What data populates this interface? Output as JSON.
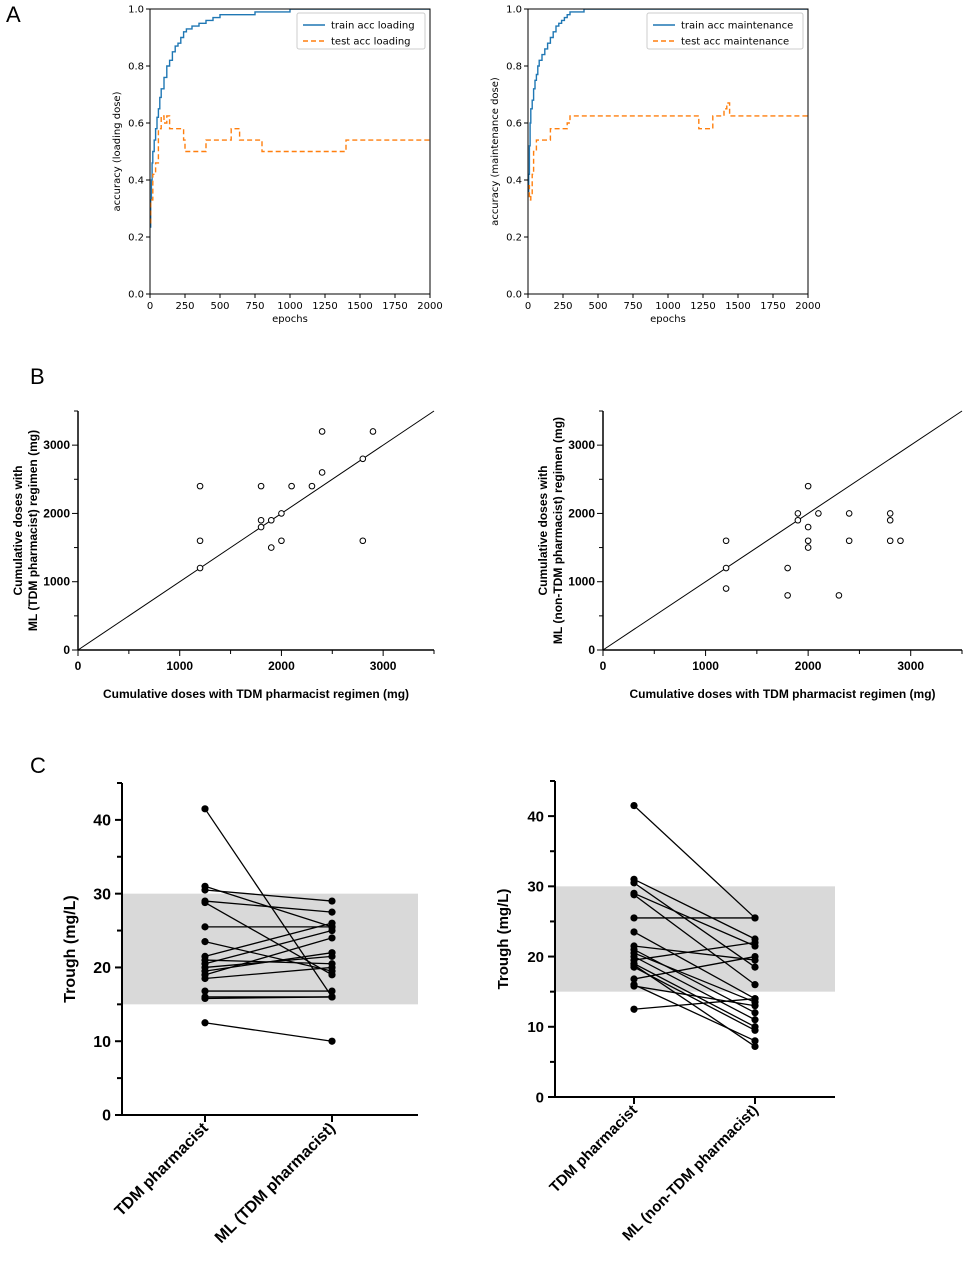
{
  "panel_labels": {
    "a": "A",
    "b": "B",
    "c": "C"
  },
  "chart_data": [
    {
      "id": "a1",
      "type": "line",
      "xlabel": "epochs",
      "ylabel": "accuracy (loading dose)",
      "xlim": [
        0,
        2000
      ],
      "ylim": [
        0,
        1.0
      ],
      "xticks": [
        0,
        250,
        500,
        750,
        1000,
        1250,
        1500,
        1750,
        2000
      ],
      "yticks": [
        0.0,
        0.2,
        0.4,
        0.6,
        0.8,
        1.0
      ],
      "legend": "top-right",
      "series": [
        {
          "name": "train acc loading",
          "color": "#1f77b4",
          "style": "solid",
          "x": [
            0,
            5,
            10,
            15,
            20,
            30,
            40,
            50,
            60,
            70,
            80,
            100,
            120,
            140,
            160,
            180,
            200,
            220,
            240,
            260,
            300,
            350,
            400,
            450,
            500,
            600,
            700,
            750,
            800,
            1000
          ],
          "y": [
            0.235,
            0.33,
            0.4,
            0.46,
            0.5,
            0.54,
            0.58,
            0.62,
            0.65,
            0.69,
            0.72,
            0.76,
            0.8,
            0.82,
            0.85,
            0.87,
            0.88,
            0.9,
            0.92,
            0.93,
            0.94,
            0.95,
            0.96,
            0.97,
            0.98,
            0.98,
            0.98,
            0.99,
            0.99,
            1.0
          ]
        },
        {
          "name": "test acc loading",
          "color": "#ff7f0e",
          "style": "dashed",
          "x": [
            0,
            5,
            20,
            40,
            60,
            80,
            100,
            120,
            140,
            200,
            240,
            250,
            380,
            400,
            560,
            580,
            620,
            640,
            780,
            800,
            1380,
            1400,
            2000
          ],
          "y": [
            0.25,
            0.33,
            0.42,
            0.46,
            0.58,
            0.625,
            0.6,
            0.625,
            0.58,
            0.58,
            0.54,
            0.5,
            0.5,
            0.54,
            0.54,
            0.58,
            0.58,
            0.54,
            0.54,
            0.5,
            0.5,
            0.54,
            0.54
          ]
        }
      ]
    },
    {
      "id": "a2",
      "type": "line",
      "xlabel": "epochs",
      "ylabel": "accuracy (maintenance dose)",
      "xlim": [
        0,
        2000
      ],
      "ylim": [
        0,
        1.0
      ],
      "xticks": [
        0,
        250,
        500,
        750,
        1000,
        1250,
        1500,
        1750,
        2000
      ],
      "yticks": [
        0.0,
        0.2,
        0.4,
        0.6,
        0.8,
        1.0
      ],
      "legend": "top-right",
      "series": [
        {
          "name": "train acc maintenance",
          "color": "#1f77b4",
          "style": "solid",
          "x": [
            0,
            5,
            10,
            15,
            20,
            30,
            40,
            50,
            60,
            70,
            80,
            100,
            120,
            140,
            160,
            180,
            200,
            220,
            240,
            260,
            280,
            300,
            350,
            400
          ],
          "y": [
            0.36,
            0.42,
            0.52,
            0.6,
            0.65,
            0.68,
            0.72,
            0.75,
            0.77,
            0.8,
            0.82,
            0.84,
            0.86,
            0.88,
            0.9,
            0.92,
            0.94,
            0.95,
            0.96,
            0.97,
            0.98,
            0.99,
            0.99,
            1.0
          ]
        },
        {
          "name": "test acc maintenance",
          "color": "#ff7f0e",
          "style": "dashed",
          "x": [
            0,
            10,
            20,
            30,
            40,
            60,
            100,
            120,
            160,
            180,
            280,
            300,
            600,
            1200,
            1220,
            1300,
            1320,
            1380,
            1400,
            1420,
            1440,
            2000
          ],
          "y": [
            0.38,
            0.33,
            0.35,
            0.42,
            0.5,
            0.54,
            0.54,
            0.54,
            0.58,
            0.58,
            0.6,
            0.625,
            0.625,
            0.625,
            0.58,
            0.58,
            0.625,
            0.625,
            0.65,
            0.67,
            0.625,
            0.625
          ]
        }
      ]
    },
    {
      "id": "b1",
      "type": "scatter",
      "xlabel": "Cumulative doses  with TDM pharmacist regimen (mg)",
      "ylabel_lines": [
        "Cumulative doses  with",
        "ML (TDM pharmacist) regimen (mg)"
      ],
      "xlim": [
        0,
        3500
      ],
      "ylim": [
        0,
        3500
      ],
      "xticks": [
        0,
        1000,
        2000,
        3000
      ],
      "yticks": [
        0,
        1000,
        2000,
        3000
      ],
      "identity_line": true,
      "points": [
        [
          1200,
          2400
        ],
        [
          1200,
          1600
        ],
        [
          1200,
          1200
        ],
        [
          1800,
          2400
        ],
        [
          1800,
          1900
        ],
        [
          1800,
          1800
        ],
        [
          1900,
          1900
        ],
        [
          1900,
          1500
        ],
        [
          2000,
          2000
        ],
        [
          2000,
          1600
        ],
        [
          2100,
          2400
        ],
        [
          2300,
          2400
        ],
        [
          2400,
          3200
        ],
        [
          2400,
          2600
        ],
        [
          2800,
          2800
        ],
        [
          2800,
          1600
        ],
        [
          2900,
          3200
        ]
      ]
    },
    {
      "id": "b2",
      "type": "scatter",
      "xlabel": "Cumulative doses  with TDM pharmacist regimen (mg)",
      "ylabel_lines": [
        "Cumulative doses  with",
        "ML (non-TDM pharmacist) regimen (mg)"
      ],
      "xlim": [
        0,
        3500
      ],
      "ylim": [
        0,
        3500
      ],
      "xticks": [
        0,
        1000,
        2000,
        3000
      ],
      "yticks": [
        0,
        1000,
        2000,
        3000
      ],
      "identity_line": true,
      "points": [
        [
          1200,
          1600
        ],
        [
          1200,
          1200
        ],
        [
          1200,
          900
        ],
        [
          1800,
          1200
        ],
        [
          1800,
          800
        ],
        [
          1900,
          2000
        ],
        [
          1900,
          1900
        ],
        [
          2000,
          2400
        ],
        [
          2000,
          1800
        ],
        [
          2000,
          1600
        ],
        [
          2000,
          1500
        ],
        [
          2100,
          2000
        ],
        [
          2300,
          800
        ],
        [
          2400,
          2000
        ],
        [
          2400,
          1600
        ],
        [
          2800,
          2000
        ],
        [
          2800,
          1900
        ],
        [
          2800,
          1600
        ],
        [
          2900,
          1600
        ]
      ]
    },
    {
      "id": "c1",
      "type": "paired-dot",
      "ylabel": "Trough  (mg/L)",
      "categories": [
        "TDM pharmacist",
        "ML (TDM pharmacist)"
      ],
      "ylim": [
        0,
        45
      ],
      "yticks": [
        0,
        10,
        20,
        30,
        40
      ],
      "target_band": [
        15,
        30
      ],
      "band_color": "#d9d9d9",
      "pairs": [
        [
          41.5,
          16
        ],
        [
          31,
          25.5
        ],
        [
          30.5,
          29
        ],
        [
          29,
          27.5
        ],
        [
          28.8,
          19
        ],
        [
          25.5,
          25.5
        ],
        [
          23.5,
          19.5
        ],
        [
          21.5,
          26
        ],
        [
          21,
          20.5
        ],
        [
          20.5,
          25
        ],
        [
          20,
          21.5
        ],
        [
          19.5,
          22
        ],
        [
          19,
          24
        ],
        [
          18.5,
          20
        ],
        [
          16.8,
          16.8
        ],
        [
          16,
          16
        ],
        [
          15.8,
          16
        ],
        [
          12.5,
          10
        ]
      ]
    },
    {
      "id": "c2",
      "type": "paired-dot",
      "ylabel": "Trough  (mg/L)",
      "categories": [
        "TDM pharmacist",
        "ML (non-TDM pharmacist)"
      ],
      "ylim": [
        0,
        45
      ],
      "yticks": [
        0,
        10,
        20,
        30,
        40
      ],
      "target_band": [
        15,
        30
      ],
      "band_color": "#d9d9d9",
      "pairs": [
        [
          41.5,
          25.5
        ],
        [
          31,
          22.5
        ],
        [
          30.5,
          18.5
        ],
        [
          29,
          21.5
        ],
        [
          28.8,
          16
        ],
        [
          25.5,
          25.5
        ],
        [
          23.5,
          14
        ],
        [
          21.5,
          19.5
        ],
        [
          21,
          12
        ],
        [
          20.5,
          13.5
        ],
        [
          20,
          11
        ],
        [
          19.5,
          22
        ],
        [
          19,
          10
        ],
        [
          18.5,
          9.5
        ],
        [
          16.8,
          20
        ],
        [
          16,
          8
        ],
        [
          15.8,
          13
        ],
        [
          12.5,
          14
        ],
        [
          18.8,
          7.2
        ]
      ]
    }
  ]
}
